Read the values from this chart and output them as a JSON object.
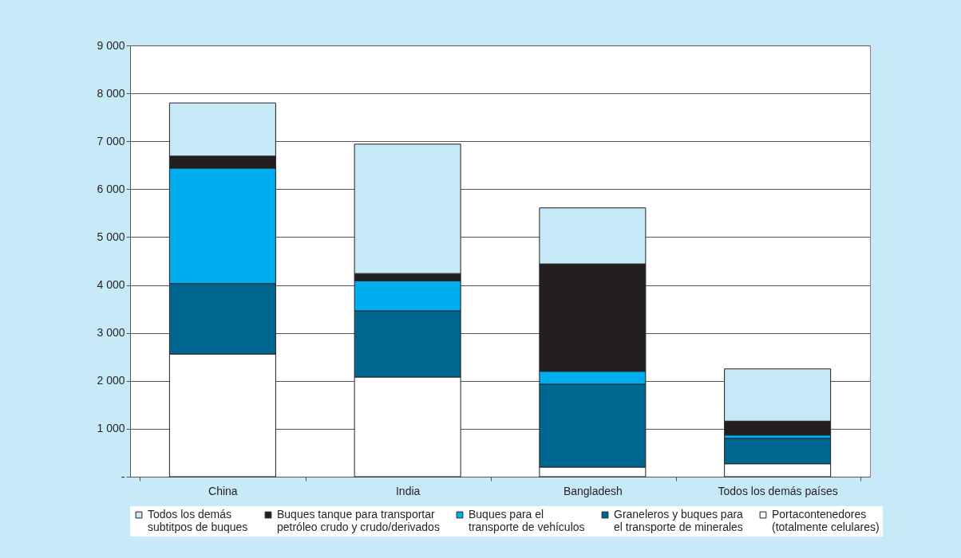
{
  "chart_data": {
    "type": "bar",
    "stacked": true,
    "categories": [
      "China",
      "India",
      "Bangladesh",
      "Todos los demás países"
    ],
    "series": [
      {
        "name": "Portacontenedores (totalmente celulares)",
        "color": "#ffffff",
        "values": [
          2560,
          2080,
          200,
          270
        ]
      },
      {
        "name": "Graneleros y buques para el transporte de minerales",
        "color": "#006890",
        "values": [
          1470,
          1380,
          1730,
          530
        ]
      },
      {
        "name": "Buques para el transporte de vehículos",
        "color": "#00aeef",
        "values": [
          2410,
          630,
          270,
          70
        ]
      },
      {
        "name": "Buques tanque para transportar petróleo crudo y crudo/derivados",
        "color": "#231f20",
        "values": [
          250,
          150,
          2240,
          290
        ]
      },
      {
        "name": "Todos los demás subtitpos de buques",
        "color": "#c6e9f8",
        "values": [
          1110,
          2700,
          1170,
          1090
        ]
      }
    ],
    "ylim": [
      0,
      9000
    ],
    "yticks": [
      {
        "value": 0,
        "label": "-"
      },
      {
        "value": 1000,
        "label": "1 000"
      },
      {
        "value": 2000,
        "label": "2 000"
      },
      {
        "value": 3000,
        "label": "3 000"
      },
      {
        "value": 4000,
        "label": "4 000"
      },
      {
        "value": 5000,
        "label": "5 000"
      },
      {
        "value": 6000,
        "label": "6 000"
      },
      {
        "value": 7000,
        "label": "7 000"
      },
      {
        "value": 8000,
        "label": "8 000"
      },
      {
        "value": 9000,
        "label": "9 000"
      }
    ],
    "grid": "y",
    "legend": "bottom"
  }
}
